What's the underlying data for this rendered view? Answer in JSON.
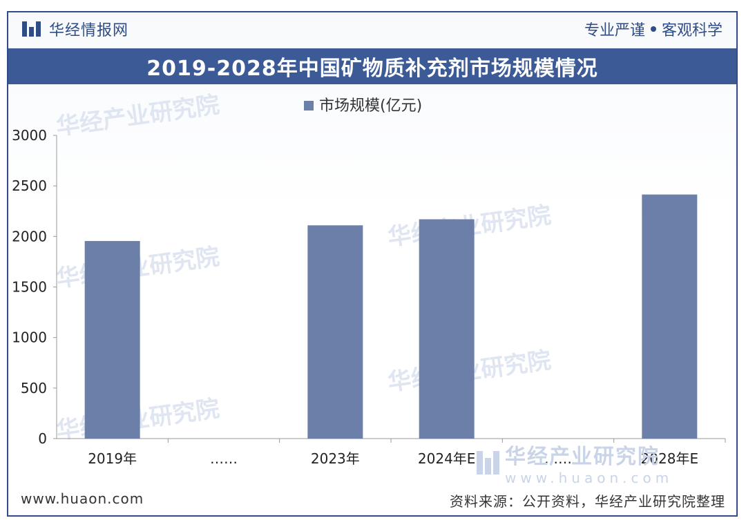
{
  "brand": {
    "name": "华经情报网",
    "tagline_left": "专业严谨",
    "tagline_right": "客观科学"
  },
  "chart_data": {
    "type": "bar",
    "title": "2019-2028年中国矿物质补充剂市场规模情况",
    "categories": [
      "2019年",
      "……",
      "2023年",
      "2024年E",
      "……",
      "2028年E"
    ],
    "series": [
      {
        "name": "市场规模(亿元)",
        "values": [
          1955,
          null,
          2110,
          2170,
          null,
          2415
        ],
        "color": "#6b7fa8"
      }
    ],
    "yticks": [
      0,
      500,
      1000,
      1500,
      2000,
      2500,
      3000
    ],
    "ylim": [
      0,
      3000
    ],
    "legend": "top-center",
    "grid": false
  },
  "watermarks": {
    "main": "华经产业研究院",
    "url": "www.huaon.com"
  },
  "footer": {
    "website": "www.huaon.com",
    "source": "资料来源：公开资料，华经产业研究院整理"
  }
}
